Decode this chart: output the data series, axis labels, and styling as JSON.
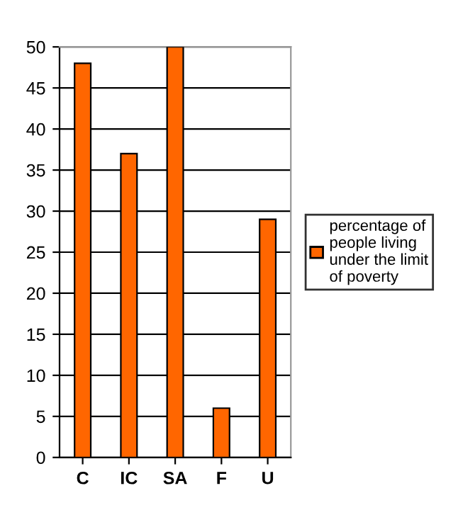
{
  "chart_data": {
    "type": "bar",
    "categories": [
      "C",
      "IC",
      "SA",
      "F",
      "U"
    ],
    "series": [
      {
        "name": "percentage of\npeople living\nunder the limit\nof poverty",
        "color": "#ff6600",
        "values": [
          48,
          37,
          50,
          6,
          29
        ]
      }
    ],
    "ylim": [
      0,
      50
    ],
    "yticks": [
      0,
      5,
      10,
      15,
      20,
      25,
      30,
      35,
      40,
      45,
      50
    ],
    "grid": "y",
    "legend": "right"
  }
}
